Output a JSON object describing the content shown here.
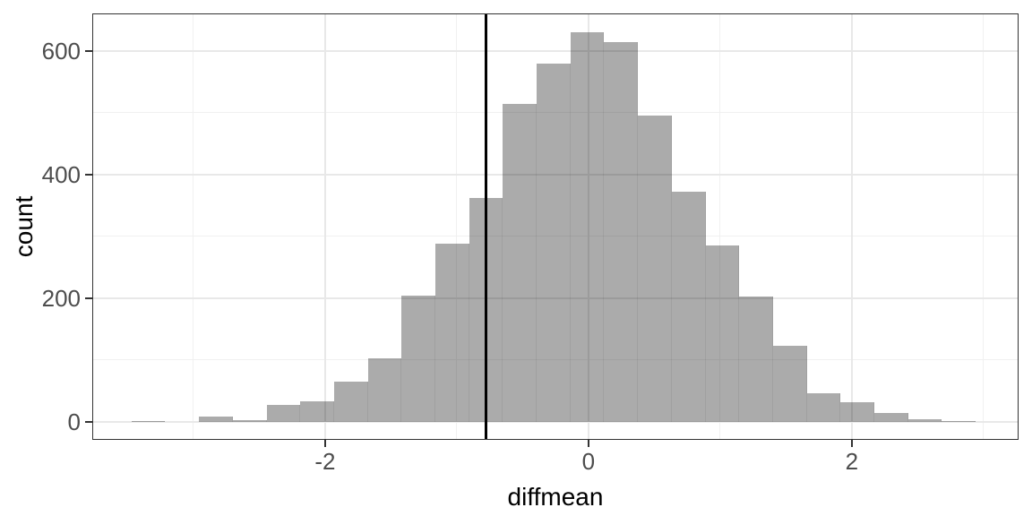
{
  "figure": {
    "kind": "histogram-plot",
    "background": "#ffffff"
  },
  "chart_data": {
    "type": "bar",
    "subtype": "histogram",
    "title": "",
    "xlabel": "diffmean",
    "ylabel": "count",
    "xlim": [
      -3.768,
      3.266
    ],
    "ylim": [
      -28.3,
      661.6
    ],
    "x_major_ticks": [
      -2,
      0,
      2
    ],
    "x_tick_labels": [
      "-2",
      "0",
      "2"
    ],
    "x_minor_ticks": [
      -3,
      -1,
      1,
      3
    ],
    "y_major_ticks": [
      0,
      200,
      400,
      600
    ],
    "y_tick_labels": [
      "0",
      "200",
      "400",
      "600"
    ],
    "y_minor_ticks": [
      100,
      300,
      500
    ],
    "grid": true,
    "legend": false,
    "bins": {
      "start": -3.47,
      "binwidth": 0.2564,
      "counts": [
        2,
        0,
        9,
        3,
        28,
        34,
        65,
        103,
        204,
        289,
        362,
        515,
        580,
        630,
        615,
        495,
        372,
        285,
        203,
        123,
        46,
        32,
        14,
        5,
        2
      ]
    },
    "vline": {
      "x": -0.78
    }
  },
  "colors": {
    "bar_fill": "rgba(0,0,0,0.33)",
    "bar_seam": "rgba(0,0,0,0.06)",
    "grid_major": "#e8e8e8",
    "grid_minor": "#f0f0f0",
    "panel_border": "#333333",
    "tick_mark": "#333333",
    "tick_text": "#4d4d4d",
    "axis_title": "#000000",
    "vline": "#000000",
    "background": "#ffffff"
  }
}
